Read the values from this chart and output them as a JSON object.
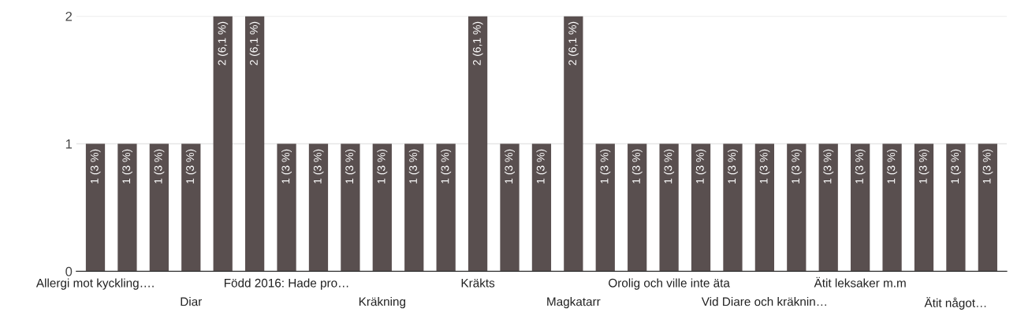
{
  "chart_data": {
    "type": "bar",
    "categories": [
      "Allergi mot kyckling….",
      null,
      null,
      "Diar",
      null,
      null,
      "Född 2016: Hade pro…",
      null,
      null,
      "Kräkning",
      null,
      null,
      "Kräkts",
      null,
      null,
      "Magkatarr",
      null,
      null,
      "Orolig och ville inte äta",
      null,
      null,
      "Vid Diare och kräknin…",
      null,
      null,
      "Ätit leksaker m.m",
      null,
      null,
      "Ätit något…",
      null
    ],
    "values": [
      1,
      1,
      1,
      1,
      2,
      2,
      1,
      1,
      1,
      1,
      1,
      1,
      2,
      1,
      1,
      2,
      1,
      1,
      1,
      1,
      1,
      1,
      1,
      1,
      1,
      1,
      1,
      1,
      1
    ],
    "value_labels": [
      "1 (3 %)",
      "1 (3 %)",
      "1 (3 %)",
      "1 (3 %)",
      "2 (6,1 %)",
      "2 (6,1 %)",
      "1 (3 %)",
      "1 (3 %)",
      "1 (3 %)",
      "1 (3 %)",
      "1 (3 %)",
      "1 (3 %)",
      "2 (6,1 %)",
      "1 (3 %)",
      "1 (3 %)",
      "2 (6,1 %)",
      "1 (3 %)",
      "1 (3 %)",
      "1 (3 %)",
      "1 (3 %)",
      "1 (3 %)",
      "1 (3 %)",
      "1 (3 %)",
      "1 (3 %)",
      "1 (3 %)",
      "1 (3 %)",
      "1 (3 %)",
      "1 (3 %)",
      "1 (3 %)"
    ],
    "color": "#594f4f",
    "ylim": [
      0,
      2
    ],
    "yticks": [
      0,
      1,
      2
    ],
    "grid": "y"
  }
}
